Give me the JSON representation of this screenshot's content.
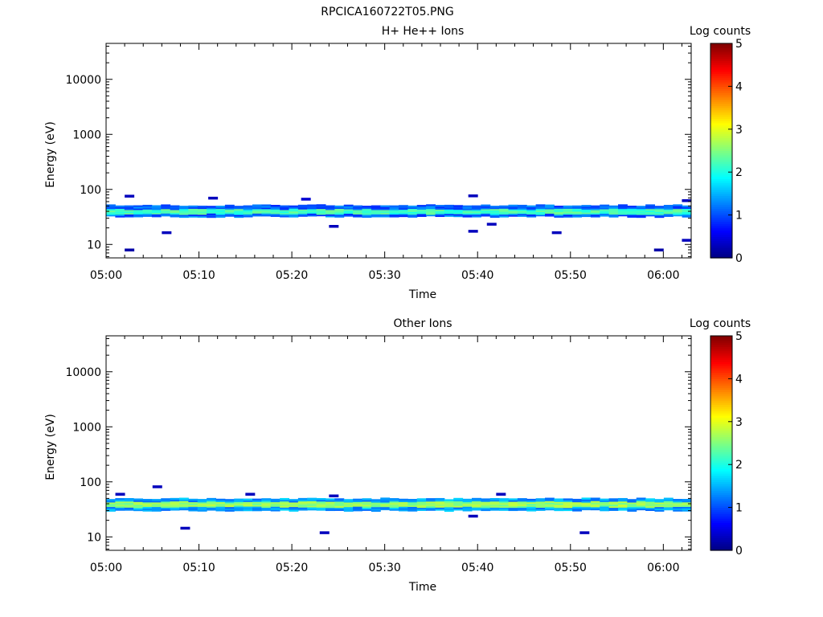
{
  "figure_title": "RPCICA160722T05.PNG",
  "chart_data": [
    {
      "type": "heatmap",
      "title": "H+ He++ Ions",
      "xlabel": "Time",
      "ylabel": "Energy (eV)",
      "x_ticks": [
        "05:00",
        "05:10",
        "05:20",
        "05:30",
        "05:40",
        "05:50",
        "06:00"
      ],
      "x_range": [
        "05:00",
        "06:03"
      ],
      "y_scale": "log",
      "y_ticks": [
        "10",
        "100",
        "1000",
        "10000"
      ],
      "y_range": [
        5.7,
        45000
      ],
      "colorbar": {
        "label": "Log counts",
        "ticks": [
          "0",
          "1",
          "2",
          "3",
          "4",
          "5"
        ],
        "range": [
          0,
          5
        ]
      },
      "band": {
        "energy_range_eV": [
          32,
          52
        ],
        "core_energy_eV": [
          36,
          44
        ],
        "core_log_counts": 2.2,
        "edge_log_counts": 1.1
      },
      "isolated_cells": [
        {
          "t": "05:02",
          "e": 8,
          "v": 0.2
        },
        {
          "t": "05:02",
          "e": 76,
          "v": 0.3
        },
        {
          "t": "05:06",
          "e": 16.5,
          "v": 0.3
        },
        {
          "t": "05:11",
          "e": 70,
          "v": 0.3
        },
        {
          "t": "05:21",
          "e": 67,
          "v": 0.4
        },
        {
          "t": "05:24",
          "e": 21.5,
          "v": 0.3
        },
        {
          "t": "05:39",
          "e": 77,
          "v": 0.3
        },
        {
          "t": "05:39",
          "e": 17.5,
          "v": 0.3
        },
        {
          "t": "05:41",
          "e": 23.5,
          "v": 0.3
        },
        {
          "t": "05:48",
          "e": 16.5,
          "v": 0.3
        },
        {
          "t": "05:59",
          "e": 8,
          "v": 0.2
        },
        {
          "t": "06:02",
          "e": 12,
          "v": 0.3
        },
        {
          "t": "06:02",
          "e": 63,
          "v": 0.3
        }
      ]
    },
    {
      "type": "heatmap",
      "title": "Other Ions",
      "xlabel": "Time",
      "ylabel": "Energy (eV)",
      "x_ticks": [
        "05:00",
        "05:10",
        "05:20",
        "05:30",
        "05:40",
        "05:50",
        "06:00"
      ],
      "x_range": [
        "05:00",
        "06:03"
      ],
      "y_scale": "log",
      "y_ticks": [
        "10",
        "100",
        "1000",
        "10000"
      ],
      "y_range": [
        5.7,
        45000
      ],
      "colorbar": {
        "label": "Log counts",
        "ticks": [
          "0",
          "1",
          "2",
          "3",
          "4",
          "5"
        ],
        "range": [
          0,
          5
        ]
      },
      "band": {
        "energy_range_eV": [
          30,
          50
        ],
        "core_energy_eV": [
          35,
          44
        ],
        "core_log_counts": 2.6,
        "edge_log_counts": 1.4
      },
      "isolated_cells": [
        {
          "t": "05:01",
          "e": 60,
          "v": 0.3
        },
        {
          "t": "05:05",
          "e": 82,
          "v": 0.3
        },
        {
          "t": "05:08",
          "e": 14.5,
          "v": 0.3
        },
        {
          "t": "05:15",
          "e": 60,
          "v": 0.3
        },
        {
          "t": "05:23",
          "e": 12,
          "v": 0.3
        },
        {
          "t": "05:24",
          "e": 56,
          "v": 0.3
        },
        {
          "t": "05:39",
          "e": 24,
          "v": 0.3
        },
        {
          "t": "05:42",
          "e": 60,
          "v": 0.3
        },
        {
          "t": "05:51",
          "e": 12,
          "v": 0.3
        }
      ]
    }
  ]
}
